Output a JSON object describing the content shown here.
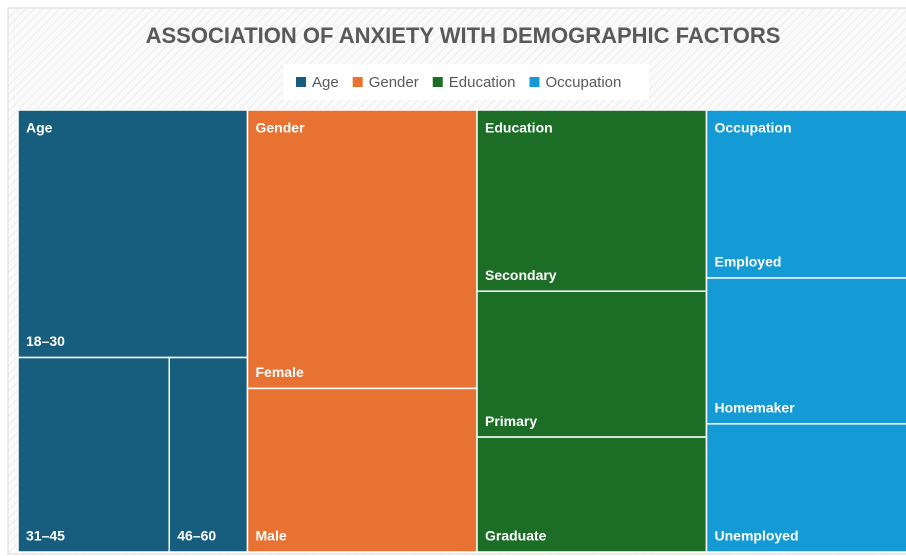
{
  "chart_data": {
    "type": "treemap",
    "title": "ASSOCIATION OF ANXIETY WITH DEMOGRAPHIC FACTORS",
    "series": [
      {
        "name": "Age",
        "color": "#175e7e",
        "categories": [
          "18–30",
          "31–45",
          "46–60"
        ],
        "values": [
          56,
          29,
          15
        ]
      },
      {
        "name": "Gender",
        "color": "#e87232",
        "categories": [
          "Female",
          "Male"
        ],
        "values": [
          63,
          37
        ]
      },
      {
        "name": "Education",
        "color": "#1c6e27",
        "categories": [
          "Secondary",
          "Primary",
          "Graduate"
        ],
        "values": [
          41,
          33,
          26
        ]
      },
      {
        "name": "Occupation",
        "color": "#149bd6",
        "categories": [
          "Employed",
          "Homemaker",
          "Unemployed"
        ],
        "values": [
          38,
          33,
          29
        ]
      }
    ],
    "legend": "top"
  }
}
